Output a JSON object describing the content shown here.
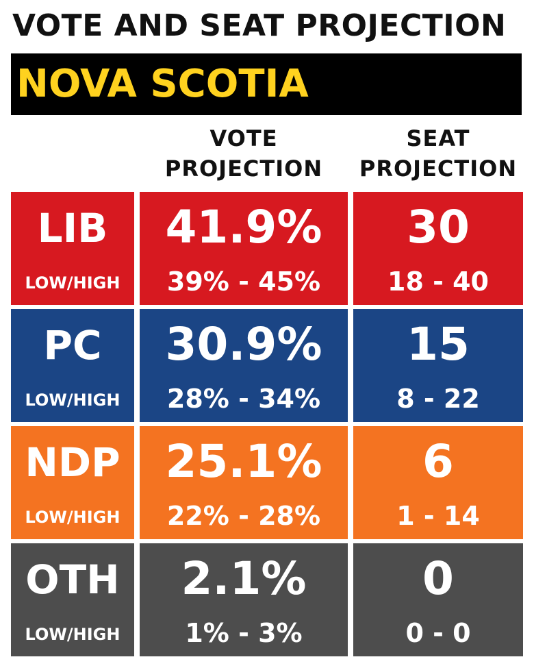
{
  "header": {
    "title": "VOTE AND SEAT PROJECTION",
    "region": "NOVA SCOTIA"
  },
  "columns": {
    "vote_line1": "VOTE",
    "vote_line2": "PROJECTION",
    "seat_line1": "SEAT",
    "seat_line2": "PROJECTION"
  },
  "colors": {
    "LIB": "#d71920",
    "PC": "#1b4585",
    "NDP": "#f47321",
    "OTH": "#4d4d4d",
    "region_text": "#ffd21f"
  },
  "chart_data": {
    "type": "table",
    "title": "VOTE AND SEAT PROJECTION",
    "subtitle": "NOVA SCOTIA",
    "range_label": "LOW/HIGH",
    "rows": [
      {
        "party": "LIB",
        "vote": "41.9%",
        "vote_range": "39% - 45%",
        "seats": "30",
        "seat_range": "18 - 40"
      },
      {
        "party": "PC",
        "vote": "30.9%",
        "vote_range": "28% - 34%",
        "seats": "15",
        "seat_range": "8 - 22"
      },
      {
        "party": "NDP",
        "vote": "25.1%",
        "vote_range": "22% - 28%",
        "seats": "6",
        "seat_range": "1 - 14"
      },
      {
        "party": "OTH",
        "vote": "2.1%",
        "vote_range": "1% - 3%",
        "seats": "0",
        "seat_range": "0 - 0"
      }
    ]
  }
}
